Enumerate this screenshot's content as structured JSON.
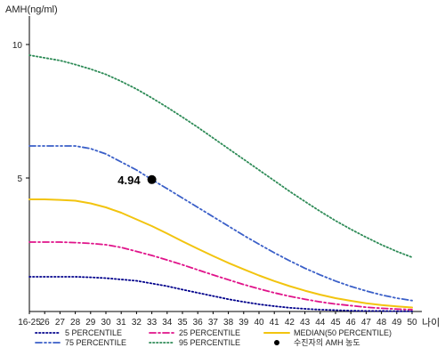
{
  "chart_data": {
    "type": "line",
    "ylabel": "AMH(ng/ml)",
    "xlabel": "나이",
    "yticks": [
      5,
      10
    ],
    "ylim": [
      0,
      11
    ],
    "x_tick_labels": [
      "16-25",
      "26",
      "27",
      "28",
      "29",
      "30",
      "31",
      "32",
      "33",
      "34",
      "35",
      "36",
      "37",
      "38",
      "39",
      "40",
      "41",
      "42",
      "43",
      "44",
      "45",
      "46",
      "47",
      "48",
      "49",
      "50"
    ],
    "series": [
      {
        "name": "5 PERCENTILE",
        "color": "#00008b",
        "dash": "dot",
        "values": [
          1.3,
          1.3,
          1.3,
          1.3,
          1.28,
          1.25,
          1.2,
          1.15,
          1.05,
          0.95,
          0.82,
          0.7,
          0.58,
          0.46,
          0.36,
          0.27,
          0.2,
          0.14,
          0.1,
          0.07,
          0.05,
          0.03,
          0.02,
          0.02,
          0.01,
          0.01
        ]
      },
      {
        "name": "25 PERCENTILE",
        "color": "#e0138a",
        "dash": "dashdot",
        "values": [
          2.6,
          2.6,
          2.6,
          2.58,
          2.55,
          2.5,
          2.4,
          2.25,
          2.1,
          1.93,
          1.75,
          1.56,
          1.37,
          1.19,
          1.01,
          0.85,
          0.7,
          0.57,
          0.46,
          0.36,
          0.28,
          0.22,
          0.16,
          0.12,
          0.09,
          0.07
        ]
      },
      {
        "name": "MEDIAN(50 PERCENTILE)",
        "color": "#f2c40f",
        "dash": "solid",
        "values": [
          4.2,
          4.2,
          4.18,
          4.15,
          4.05,
          3.9,
          3.7,
          3.45,
          3.2,
          2.92,
          2.63,
          2.35,
          2.08,
          1.82,
          1.58,
          1.35,
          1.14,
          0.95,
          0.78,
          0.63,
          0.5,
          0.4,
          0.31,
          0.24,
          0.19,
          0.15
        ]
      },
      {
        "name": "75 PERCENTILE",
        "color": "#3a5fc8",
        "dash": "dashdotdot",
        "values": [
          6.2,
          6.2,
          6.2,
          6.2,
          6.1,
          5.9,
          5.6,
          5.3,
          4.94,
          4.6,
          4.25,
          3.9,
          3.55,
          3.2,
          2.85,
          2.52,
          2.2,
          1.9,
          1.62,
          1.37,
          1.14,
          0.94,
          0.77,
          0.62,
          0.5,
          0.41
        ]
      },
      {
        "name": "95 PERCENTILE",
        "color": "#2e8b57",
        "dash": "dot",
        "values": [
          9.6,
          9.5,
          9.4,
          9.25,
          9.08,
          8.88,
          8.62,
          8.33,
          8.0,
          7.65,
          7.28,
          6.9,
          6.5,
          6.1,
          5.7,
          5.3,
          4.9,
          4.5,
          4.12,
          3.75,
          3.4,
          3.08,
          2.78,
          2.5,
          2.25,
          2.03
        ]
      }
    ],
    "point": {
      "name": "수진자의 AMH 농도",
      "x_label": "33",
      "y": 4.94,
      "label": "4.94",
      "color": "#000000"
    },
    "legend_columns": 3,
    "legend_position": "bottom"
  }
}
